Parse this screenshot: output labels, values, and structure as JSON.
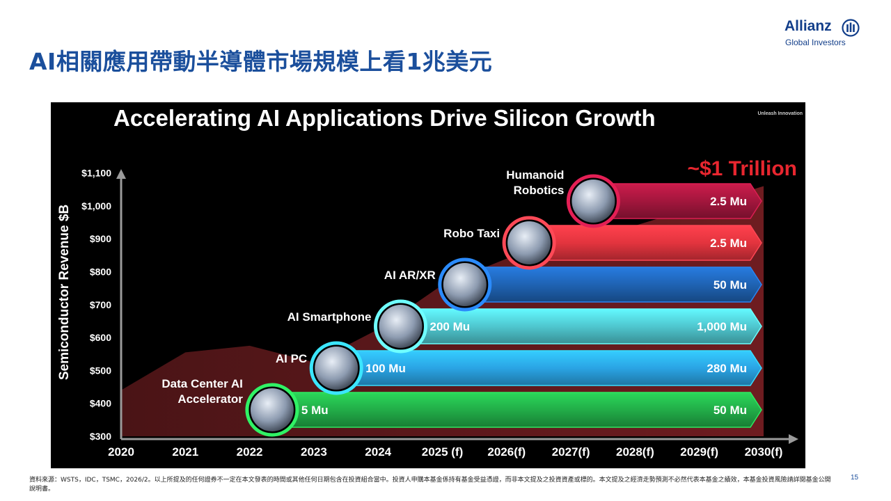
{
  "slide": {
    "title": "AI相關應用帶動半導體市場規模上看1兆美元",
    "page_number": "15",
    "footnote": "資料來源：WSTS，IDC，TSMC，2026/2。以上所提及的任何證券不一定在本文發表的時間或其他任何日期包含在投資組合當中。投資人申購本基金係持有基金受益憑證，而非本文提及之投資資產或標的。本文提及之經濟走勢預測不必然代表本基金之績效，本基金投資風險請詳閱基金公開說明書。"
  },
  "logo": {
    "name": "Allianz",
    "sub": "Global Investors",
    "icon": "allianz-eagle-mark"
  },
  "chart_data": {
    "type": "area",
    "title": "Accelerating AI Applications Drive Silicon Growth",
    "tagline": "Unleash Innovation",
    "ylabel": "Semiconductor Revenue $B",
    "ylim": [
      300,
      1100
    ],
    "y_ticks": [
      "$300",
      "$400",
      "$500",
      "$600",
      "$700",
      "$800",
      "$900",
      "$1,000",
      "$1,100"
    ],
    "y_tick_values": [
      300,
      400,
      500,
      600,
      700,
      800,
      900,
      1000,
      1100
    ],
    "categories": [
      "2020",
      "2021",
      "2022",
      "2023",
      "2024",
      "2025 (f)",
      "2026(f)",
      "2027(f)",
      "2028(f)",
      "2029(f)",
      "2030(f)"
    ],
    "series": [
      {
        "values": [
          440,
          555,
          575,
          525,
          625,
          760,
          840,
          890,
          940,
          1000,
          1060
        ]
      }
    ],
    "headline": "~$1 Trillion",
    "applications": [
      {
        "name": "Data Center AI\nAccelerator",
        "start_label": "5 Mu",
        "end_label": "50 Mu",
        "start_index": 2.35,
        "color": "#22ad48",
        "icon": "server-rack-photo"
      },
      {
        "name": "AI PC",
        "start_label": "100 Mu",
        "end_label": "280 Mu",
        "start_index": 3.35,
        "color": "#2aa4e4",
        "icon": "laptop-photo"
      },
      {
        "name": "AI Smartphone",
        "start_label": "200 Mu",
        "end_label": "1,000 Mu",
        "start_index": 4.35,
        "color": "#4fc7cf",
        "icon": "smartphone-photo"
      },
      {
        "name": "AI AR/XR",
        "start_label": "",
        "end_label": "50 Mu",
        "start_index": 5.35,
        "color": "#1f63b3",
        "icon": "vr-headset-photo"
      },
      {
        "name": "Robo Taxi",
        "start_label": "",
        "end_label": "2.5 Mu",
        "start_index": 6.35,
        "color": "#e3343e",
        "icon": "robotaxi-photo"
      },
      {
        "name": "Humanoid\nRobotics",
        "start_label": "",
        "end_label": "2.5 Mu",
        "start_index": 7.35,
        "color": "#a3163d",
        "icon": "humanoid-robot-photo"
      }
    ],
    "grid": false,
    "legend": "none"
  }
}
